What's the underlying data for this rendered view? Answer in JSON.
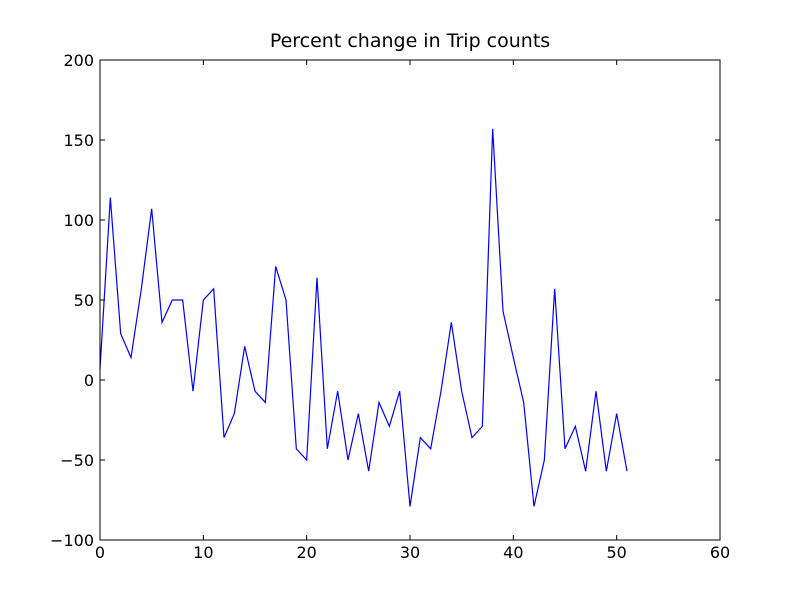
{
  "chart_data": {
    "type": "line",
    "title": "Percent change in Trip counts",
    "xlabel": "",
    "ylabel": "",
    "xlim": [
      0,
      60
    ],
    "ylim": [
      -100,
      200
    ],
    "xticks": [
      0,
      10,
      20,
      30,
      40,
      50,
      60
    ],
    "yticks": [
      -100,
      -50,
      0,
      50,
      100,
      150,
      200
    ],
    "grid": false,
    "series": [
      {
        "color": "#0000ff",
        "x": [
          0,
          1,
          2,
          3,
          4,
          5,
          6,
          7,
          8,
          9,
          10,
          11,
          12,
          13,
          14,
          15,
          16,
          17,
          18,
          19,
          20,
          21,
          22,
          23,
          24,
          25,
          26,
          27,
          28,
          29,
          30,
          31,
          32,
          33,
          34,
          35,
          36,
          37,
          38,
          39,
          40,
          41,
          42,
          43,
          44,
          45,
          46,
          47,
          48,
          49,
          50,
          51
        ],
        "values": [
          7,
          114,
          29,
          14,
          57,
          107,
          36,
          50,
          50,
          -7,
          50,
          57,
          -36,
          -21,
          21,
          -7,
          -14,
          71,
          50,
          -43,
          -50,
          64,
          -43,
          -7,
          -50,
          -21,
          -57,
          -14,
          -29,
          -7,
          -79,
          -36,
          -43,
          -7,
          36,
          -7,
          -36,
          -29,
          157,
          43,
          14,
          -14,
          -79,
          -50,
          57,
          -43,
          -29,
          -57,
          -7,
          -57,
          -21,
          -57
        ]
      }
    ]
  }
}
